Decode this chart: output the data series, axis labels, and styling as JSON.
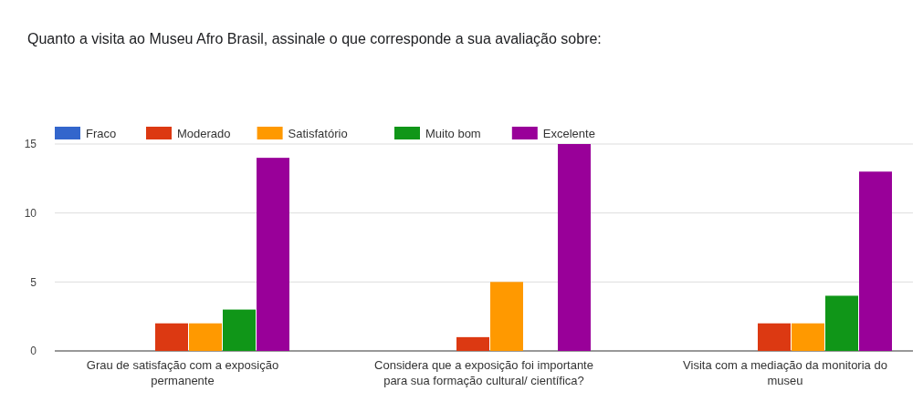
{
  "chart_data": {
    "type": "bar",
    "title": "Quanto a visita ao Museu Afro Brasil, assinale o que corresponde a sua avaliação sobre:",
    "categories": [
      "Grau de satisfação com a exposição permanente",
      "Considera que a exposição foi importante para sua formação cultural/ científica?",
      "Visita com a mediação da monitoria do museu"
    ],
    "series": [
      {
        "name": "Fraco",
        "color": "#3366cc",
        "values": [
          0,
          0,
          0
        ]
      },
      {
        "name": "Moderado",
        "color": "#dc3912",
        "values": [
          2,
          1,
          2
        ]
      },
      {
        "name": "Satisfatório",
        "color": "#ff9900",
        "values": [
          2,
          5,
          2
        ]
      },
      {
        "name": "Muito bom",
        "color": "#109618",
        "values": [
          3,
          0,
          4
        ]
      },
      {
        "name": "Excelente",
        "color": "#990099",
        "values": [
          14,
          15,
          13
        ]
      }
    ],
    "ylim": [
      0,
      15
    ],
    "yticks": [
      0,
      5,
      10,
      15
    ],
    "grid": "y",
    "legend": "top left"
  }
}
